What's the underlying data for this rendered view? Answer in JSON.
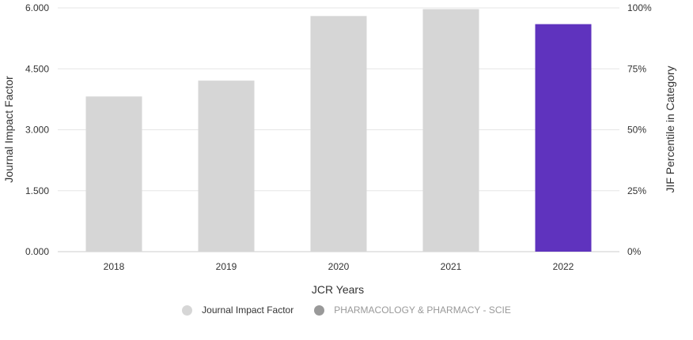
{
  "chart_data": {
    "type": "bar",
    "categories": [
      "2018",
      "2019",
      "2020",
      "2021",
      "2022"
    ],
    "series": [
      {
        "name": "Journal Impact Factor",
        "values": [
          3.82,
          4.21,
          5.8,
          5.97,
          5.6
        ]
      }
    ],
    "highlight_index": 4,
    "xlabel": "JCR Years",
    "ylabel": "Journal Impact Factor",
    "ylabel_right": "JIF Percentile in Category",
    "ylim": [
      0,
      6
    ],
    "y_ticks": [
      "0.000",
      "1.500",
      "3.000",
      "4.500",
      "6.000"
    ],
    "y2_ticks": [
      "0%",
      "25%",
      "50%",
      "75%",
      "100%"
    ],
    "grid": true
  },
  "legend": {
    "items": [
      {
        "label": "Journal Impact Factor",
        "color": "#d6d6d6",
        "active": true
      },
      {
        "label": "PHARMACOLOGY & PHARMACY - SCIE",
        "color": "#999999",
        "active": false
      }
    ]
  },
  "colors": {
    "bar": "#d6d6d6",
    "bar_highlight": "#5f33be",
    "grid": "#e6e6e6"
  }
}
